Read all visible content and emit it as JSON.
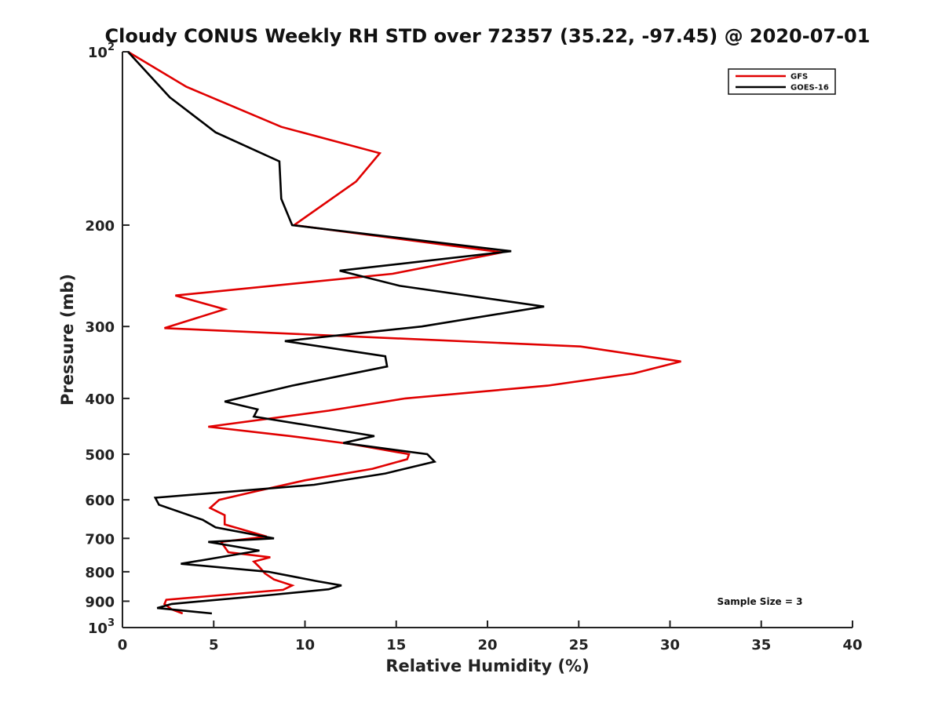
{
  "chart_data": {
    "type": "line",
    "title": "Cloudy CONUS Weekly RH STD over 72357 (35.22, -97.45) @ 2020-07-01",
    "xlabel": "Relative Humidity (%)",
    "ylabel": "Pressure (mb)",
    "xlim": [
      0,
      40
    ],
    "ylim": [
      100,
      1000
    ],
    "y_scale": "log",
    "y_reversed": true,
    "grid": false,
    "legend_position": "top-right",
    "x_ticks": [
      0,
      5,
      10,
      15,
      20,
      25,
      30,
      35,
      40
    ],
    "x_tick_labels": [
      "0",
      "5",
      "10",
      "15",
      "20",
      "25",
      "30",
      "35",
      "40"
    ],
    "y_ticks": [
      100,
      200,
      300,
      400,
      500,
      600,
      700,
      800,
      900,
      1000
    ],
    "y_tick_labels": [
      {
        "base": "10",
        "exp": "2"
      },
      {
        "base": "200",
        "exp": ""
      },
      {
        "base": "300",
        "exp": ""
      },
      {
        "base": "400",
        "exp": ""
      },
      {
        "base": "500",
        "exp": ""
      },
      {
        "base": "600",
        "exp": ""
      },
      {
        "base": "700",
        "exp": ""
      },
      {
        "base": "800",
        "exp": ""
      },
      {
        "base": "900",
        "exp": ""
      },
      {
        "base": "10",
        "exp": "3"
      }
    ],
    "annotation": "Sample Size = 3",
    "series": [
      {
        "name": "GFS",
        "color": "#e00000",
        "points": [
          [
            0.3,
            100
          ],
          [
            3.5,
            115
          ],
          [
            8.7,
            135
          ],
          [
            14.1,
            150
          ],
          [
            12.8,
            168
          ],
          [
            9.4,
            200
          ],
          [
            20.8,
            223
          ],
          [
            14.8,
            243
          ],
          [
            2.9,
            265
          ],
          [
            5.6,
            280
          ],
          [
            2.3,
            302
          ],
          [
            25.1,
            325
          ],
          [
            30.6,
            345
          ],
          [
            28.0,
            362
          ],
          [
            23.3,
            380
          ],
          [
            15.5,
            400
          ],
          [
            11.3,
            420
          ],
          [
            4.7,
            448
          ],
          [
            9.2,
            465
          ],
          [
            12.5,
            480
          ],
          [
            15.7,
            500
          ],
          [
            15.6,
            510
          ],
          [
            13.7,
            530
          ],
          [
            10.0,
            555
          ],
          [
            7.3,
            580
          ],
          [
            5.3,
            600
          ],
          [
            4.8,
            620
          ],
          [
            5.6,
            638
          ],
          [
            5.6,
            662
          ],
          [
            7.9,
            695
          ],
          [
            5.4,
            710
          ],
          [
            5.8,
            740
          ],
          [
            8.1,
            755
          ],
          [
            7.2,
            768
          ],
          [
            7.5,
            785
          ],
          [
            7.8,
            805
          ],
          [
            8.3,
            825
          ],
          [
            9.3,
            845
          ],
          [
            8.8,
            860
          ],
          [
            2.4,
            895
          ],
          [
            2.3,
            910
          ],
          [
            2.7,
            930
          ],
          [
            3.3,
            945
          ]
        ]
      },
      {
        "name": "GOES-16",
        "color": "#000000",
        "points": [
          [
            0.3,
            100
          ],
          [
            2.6,
            120
          ],
          [
            5.1,
            138
          ],
          [
            8.6,
            155
          ],
          [
            8.7,
            180
          ],
          [
            9.3,
            200
          ],
          [
            21.3,
            222
          ],
          [
            11.9,
            240
          ],
          [
            15.2,
            255
          ],
          [
            23.1,
            277
          ],
          [
            16.4,
            300
          ],
          [
            8.9,
            318
          ],
          [
            14.4,
            338
          ],
          [
            14.5,
            352
          ],
          [
            9.3,
            380
          ],
          [
            5.6,
            405
          ],
          [
            7.4,
            418
          ],
          [
            7.2,
            430
          ],
          [
            13.8,
            465
          ],
          [
            12.1,
            478
          ],
          [
            16.7,
            500
          ],
          [
            17.1,
            515
          ],
          [
            14.4,
            540
          ],
          [
            10.5,
            565
          ],
          [
            1.8,
            595
          ],
          [
            2.0,
            612
          ],
          [
            4.4,
            650
          ],
          [
            5.1,
            670
          ],
          [
            8.3,
            700
          ],
          [
            4.7,
            710
          ],
          [
            7.5,
            735
          ],
          [
            4.8,
            760
          ],
          [
            3.2,
            775
          ],
          [
            8.0,
            800
          ],
          [
            10.6,
            830
          ],
          [
            12.0,
            845
          ],
          [
            11.3,
            858
          ],
          [
            8.1,
            878
          ],
          [
            2.7,
            910
          ],
          [
            1.9,
            925
          ],
          [
            4.9,
            945
          ]
        ]
      }
    ]
  }
}
